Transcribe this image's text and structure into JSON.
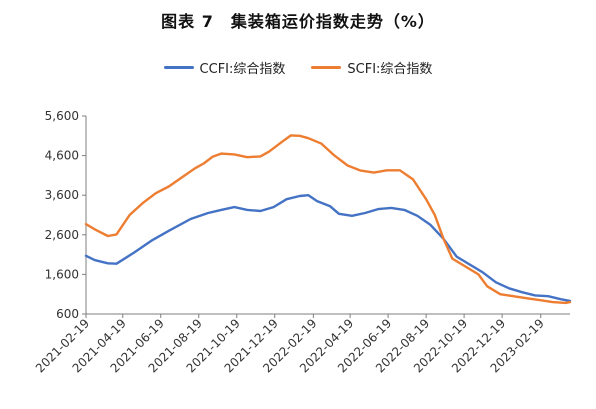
{
  "chart_data": {
    "type": "line",
    "title": "图表 7　集装箱运价指数走势（%）",
    "ylim": [
      600,
      5600
    ],
    "y_ticks": [
      600,
      1600,
      2600,
      3600,
      4600,
      5600
    ],
    "y_tick_labels": [
      "600",
      "1,600",
      "2,600",
      "3,600",
      "4,600",
      "5,600"
    ],
    "x_range": [
      "2021-02-19",
      "2023-04-07"
    ],
    "x_tick_labels": [
      "2021-02-19",
      "2021-04-19",
      "2021-06-19",
      "2021-08-19",
      "2021-10-19",
      "2021-12-19",
      "2022-02-19",
      "2022-04-19",
      "2022-06-19",
      "2022-08-19",
      "2022-10-19",
      "2022-12-19",
      "2023-02-19"
    ],
    "legend_position": "top",
    "grid": false,
    "series": [
      {
        "name": "CCFI:综合指数",
        "color": "#4472C4",
        "points": [
          [
            "2021-02-19",
            2070
          ],
          [
            "2021-03-05",
            1960
          ],
          [
            "2021-03-26",
            1880
          ],
          [
            "2021-04-09",
            1870
          ],
          [
            "2021-05-07",
            2150
          ],
          [
            "2021-06-04",
            2450
          ],
          [
            "2021-07-02",
            2700
          ],
          [
            "2021-08-06",
            3000
          ],
          [
            "2021-09-03",
            3150
          ],
          [
            "2021-09-24",
            3230
          ],
          [
            "2021-10-15",
            3300
          ],
          [
            "2021-11-05",
            3230
          ],
          [
            "2021-11-26",
            3200
          ],
          [
            "2021-12-17",
            3300
          ],
          [
            "2022-01-07",
            3500
          ],
          [
            "2022-01-28",
            3580
          ],
          [
            "2022-02-11",
            3600
          ],
          [
            "2022-02-25",
            3450
          ],
          [
            "2022-03-18",
            3320
          ],
          [
            "2022-04-01",
            3130
          ],
          [
            "2022-04-22",
            3080
          ],
          [
            "2022-05-13",
            3150
          ],
          [
            "2022-06-03",
            3250
          ],
          [
            "2022-06-24",
            3280
          ],
          [
            "2022-07-15",
            3230
          ],
          [
            "2022-08-05",
            3080
          ],
          [
            "2022-08-26",
            2850
          ],
          [
            "2022-09-16",
            2500
          ],
          [
            "2022-10-07",
            2050
          ],
          [
            "2022-10-28",
            1850
          ],
          [
            "2022-11-18",
            1650
          ],
          [
            "2022-12-09",
            1400
          ],
          [
            "2022-12-30",
            1250
          ],
          [
            "2023-01-20",
            1150
          ],
          [
            "2023-02-10",
            1070
          ],
          [
            "2023-03-03",
            1050
          ],
          [
            "2023-03-24",
            970
          ],
          [
            "2023-04-07",
            930
          ]
        ]
      },
      {
        "name": "SCFI:综合指数",
        "color": "#ED7D31",
        "points": [
          [
            "2021-02-19",
            2870
          ],
          [
            "2021-03-05",
            2740
          ],
          [
            "2021-03-26",
            2570
          ],
          [
            "2021-04-09",
            2610
          ],
          [
            "2021-04-30",
            3100
          ],
          [
            "2021-05-21",
            3400
          ],
          [
            "2021-06-11",
            3650
          ],
          [
            "2021-07-02",
            3820
          ],
          [
            "2021-07-23",
            4050
          ],
          [
            "2021-08-13",
            4280
          ],
          [
            "2021-08-27",
            4400
          ],
          [
            "2021-09-10",
            4570
          ],
          [
            "2021-09-24",
            4650
          ],
          [
            "2021-10-15",
            4630
          ],
          [
            "2021-11-05",
            4560
          ],
          [
            "2021-11-26",
            4580
          ],
          [
            "2021-12-10",
            4700
          ],
          [
            "2021-12-31",
            4950
          ],
          [
            "2022-01-14",
            5110
          ],
          [
            "2022-01-28",
            5100
          ],
          [
            "2022-02-11",
            5040
          ],
          [
            "2022-03-04",
            4900
          ],
          [
            "2022-03-25",
            4600
          ],
          [
            "2022-04-15",
            4350
          ],
          [
            "2022-05-06",
            4220
          ],
          [
            "2022-05-27",
            4170
          ],
          [
            "2022-06-17",
            4230
          ],
          [
            "2022-07-08",
            4230
          ],
          [
            "2022-07-29",
            4000
          ],
          [
            "2022-08-19",
            3500
          ],
          [
            "2022-09-02",
            3100
          ],
          [
            "2022-09-16",
            2500
          ],
          [
            "2022-09-30",
            2000
          ],
          [
            "2022-10-21",
            1800
          ],
          [
            "2022-11-11",
            1600
          ],
          [
            "2022-11-25",
            1300
          ],
          [
            "2022-12-16",
            1100
          ],
          [
            "2023-01-06",
            1050
          ],
          [
            "2023-01-27",
            1000
          ],
          [
            "2023-02-17",
            950
          ],
          [
            "2023-03-10",
            900
          ],
          [
            "2023-03-31",
            880
          ],
          [
            "2023-04-07",
            900
          ]
        ]
      }
    ]
  }
}
